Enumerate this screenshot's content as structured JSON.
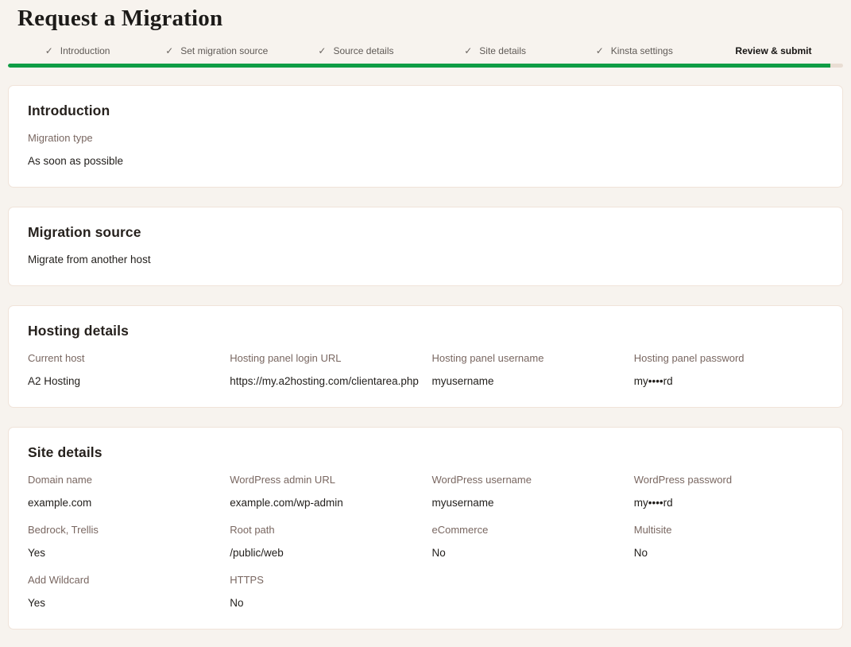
{
  "page": {
    "title": "Request a Migration"
  },
  "stepper": {
    "check_glyph": "✓",
    "progress_percent": 98.5,
    "steps": [
      {
        "label": "Introduction",
        "state": "done"
      },
      {
        "label": "Set migration source",
        "state": "done"
      },
      {
        "label": "Source details",
        "state": "done"
      },
      {
        "label": "Site details",
        "state": "done"
      },
      {
        "label": "Kinsta settings",
        "state": "done"
      },
      {
        "label": "Review & submit",
        "state": "active"
      }
    ]
  },
  "colors": {
    "accent_green": "#0f9d45",
    "progress_track": "#e9ddd3",
    "page_background": "#f7f3ee",
    "card_border": "#f0e3d9",
    "label_text": "#796761",
    "value_text": "#211e1b"
  },
  "cards": {
    "intro": {
      "title": "Introduction",
      "fields": [
        {
          "label": "Migration type",
          "value": "As soon as possible"
        }
      ]
    },
    "source": {
      "title": "Migration source",
      "value": "Migrate from another host"
    },
    "hosting": {
      "title": "Hosting details",
      "fields": [
        {
          "label": "Current host",
          "value": "A2 Hosting"
        },
        {
          "label": "Hosting panel login URL",
          "value": "https://my.a2hosting.com/clientarea.php"
        },
        {
          "label": "Hosting panel username",
          "value": "myusername"
        },
        {
          "label": "Hosting panel password",
          "value": "my••••rd"
        }
      ]
    },
    "site": {
      "title": "Site details",
      "fields": [
        {
          "label": "Domain name",
          "value": "example.com"
        },
        {
          "label": "WordPress admin URL",
          "value": "example.com/wp-admin"
        },
        {
          "label": "WordPress username",
          "value": "myusername"
        },
        {
          "label": "WordPress password",
          "value": "my••••rd"
        },
        {
          "label": "Bedrock, Trellis",
          "value": "Yes"
        },
        {
          "label": "Root path",
          "value": "/public/web"
        },
        {
          "label": "eCommerce",
          "value": "No"
        },
        {
          "label": "Multisite",
          "value": "No"
        },
        {
          "label": "Add Wildcard",
          "value": "Yes"
        },
        {
          "label": "HTTPS",
          "value": "No"
        }
      ]
    }
  }
}
